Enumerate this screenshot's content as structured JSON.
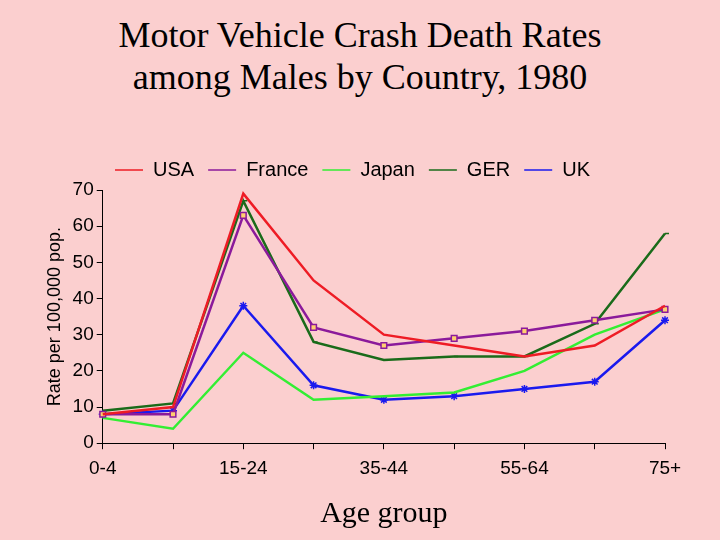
{
  "chart_data": {
    "type": "line",
    "title": "Motor Vehicle Crash Death Rates among Males by Country, 1980",
    "x_label": "Age group",
    "y_label": "Rate per 100,000 pop.",
    "categories": [
      "0-4",
      null,
      "15-24",
      null,
      "35-44",
      null,
      "55-64",
      null,
      "75+"
    ],
    "series": [
      {
        "name": "USA",
        "color": "#ee1c25",
        "marker": "none",
        "values": [
          8,
          10,
          69,
          45,
          30,
          27,
          24,
          27,
          38
        ]
      },
      {
        "name": "France",
        "color": "#8b1a9b",
        "marker": "square",
        "values": [
          8,
          8,
          63,
          32,
          27,
          29,
          31,
          34,
          37
        ]
      },
      {
        "name": "Japan",
        "color": "#33ee33",
        "marker": "none",
        "values": [
          7,
          4,
          25,
          12,
          13,
          14,
          20,
          30,
          37
        ]
      },
      {
        "name": "GER",
        "color": "#1a6b1a",
        "marker": "dash",
        "values": [
          9,
          11,
          67,
          28,
          23,
          24,
          24,
          33,
          58
        ]
      },
      {
        "name": "UK",
        "color": "#1a1aee",
        "marker": "star",
        "values": [
          8,
          9,
          38,
          16,
          12,
          13,
          15,
          17,
          34
        ]
      }
    ],
    "ylim": [
      0,
      70
    ],
    "yticks": [
      0,
      10,
      20,
      30,
      40,
      50,
      60,
      70
    ],
    "grid": false,
    "legend": "top"
  }
}
